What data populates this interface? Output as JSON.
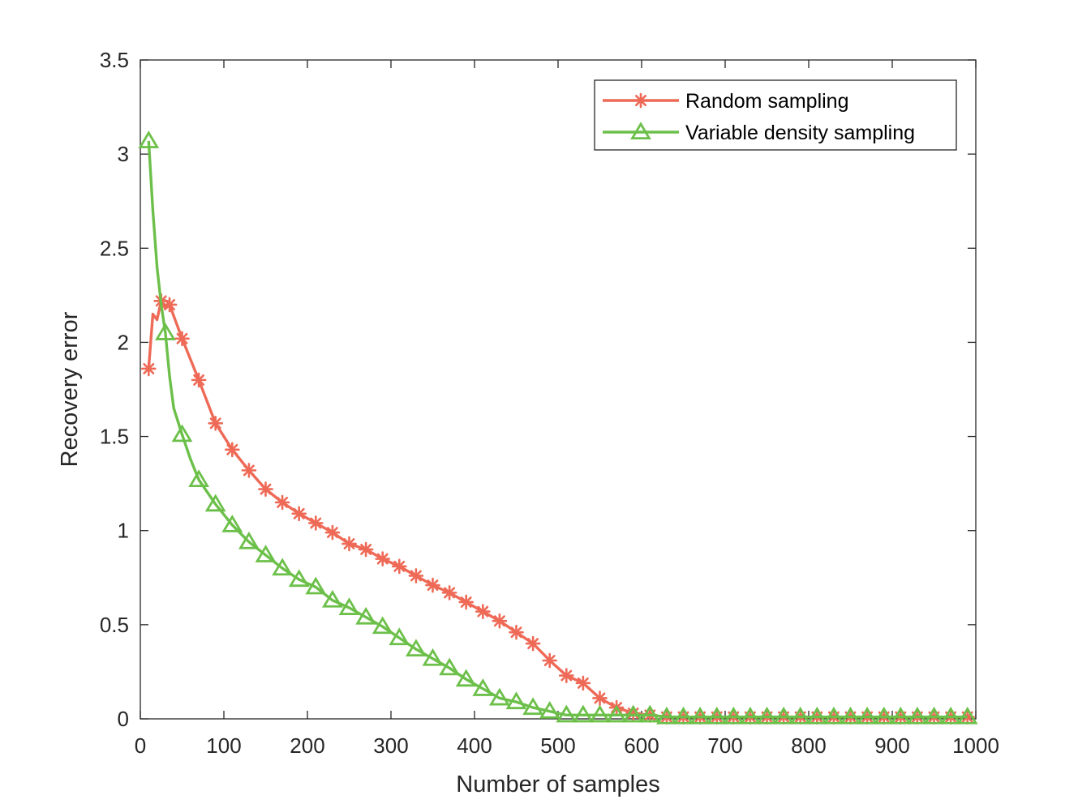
{
  "chart_data": {
    "type": "line",
    "title": "",
    "xlabel": "Number of samples",
    "ylabel": "Recovery error",
    "xlim": [
      0,
      1000
    ],
    "ylim": [
      0,
      3.5
    ],
    "x_ticks": [
      0,
      100,
      200,
      300,
      400,
      500,
      600,
      700,
      800,
      900,
      1000
    ],
    "y_ticks": [
      0,
      0.5,
      1,
      1.5,
      2,
      2.5,
      3,
      3.5
    ],
    "x_tick_labels": [
      "0",
      "100",
      "200",
      "300",
      "400",
      "500",
      "600",
      "700",
      "800",
      "900",
      "1000"
    ],
    "y_tick_labels": [
      "0",
      "0.5",
      "1",
      "1.5",
      "2",
      "2.5",
      "3",
      "3.5"
    ],
    "grid": false,
    "legend_position": "top-right",
    "series": [
      {
        "name": "Random sampling",
        "color": "#ee6a57",
        "marker": "asterisk",
        "x": [
          10,
          15,
          20,
          25,
          30,
          35,
          40,
          50,
          70,
          90,
          110,
          130,
          150,
          170,
          190,
          210,
          230,
          250,
          270,
          290,
          310,
          330,
          350,
          370,
          390,
          410,
          430,
          450,
          470,
          490,
          510,
          530,
          550,
          570,
          590,
          610,
          630,
          650,
          670,
          690,
          710,
          730,
          750,
          770,
          790,
          810,
          830,
          850,
          870,
          890,
          910,
          930,
          950,
          970,
          990
        ],
        "values": [
          1.86,
          2.15,
          2.12,
          2.22,
          2.18,
          2.2,
          2.14,
          2.02,
          1.8,
          1.57,
          1.43,
          1.32,
          1.22,
          1.15,
          1.09,
          1.04,
          0.99,
          0.93,
          0.9,
          0.85,
          0.81,
          0.76,
          0.71,
          0.67,
          0.62,
          0.57,
          0.52,
          0.46,
          0.4,
          0.31,
          0.23,
          0.19,
          0.11,
          0.06,
          0.03,
          0.02,
          0.01,
          0.01,
          0.01,
          0.01,
          0.01,
          0.01,
          0.01,
          0.01,
          0.01,
          0.01,
          0.01,
          0.01,
          0.01,
          0.01,
          0.01,
          0.01,
          0.01,
          0.01,
          0.01
        ],
        "marker_indices": [
          0,
          3,
          5,
          7,
          8,
          9,
          10,
          11,
          12,
          13,
          14,
          15,
          16,
          17,
          18,
          19,
          20,
          21,
          22,
          23,
          24,
          25,
          26,
          27,
          28,
          29,
          30,
          31,
          32,
          33,
          34,
          35,
          36,
          37,
          38,
          39,
          40,
          41,
          42,
          43,
          44,
          45,
          46,
          47,
          48,
          49,
          50,
          51,
          52,
          53,
          54
        ]
      },
      {
        "name": "Variable density sampling",
        "color": "#6cc04a",
        "marker": "triangle",
        "x": [
          10,
          15,
          20,
          25,
          30,
          35,
          40,
          50,
          60,
          70,
          90,
          110,
          130,
          150,
          170,
          190,
          210,
          230,
          250,
          270,
          290,
          310,
          330,
          350,
          370,
          390,
          410,
          430,
          450,
          470,
          490,
          510,
          530,
          550,
          570,
          590,
          610,
          630,
          650,
          670,
          690,
          710,
          730,
          750,
          770,
          790,
          810,
          830,
          850,
          870,
          890,
          910,
          930,
          950,
          970,
          990
        ],
        "values": [
          3.07,
          2.7,
          2.4,
          2.2,
          2.05,
          1.82,
          1.65,
          1.51,
          1.38,
          1.27,
          1.14,
          1.03,
          0.94,
          0.87,
          0.8,
          0.74,
          0.7,
          0.63,
          0.59,
          0.54,
          0.49,
          0.43,
          0.37,
          0.32,
          0.27,
          0.21,
          0.16,
          0.11,
          0.09,
          0.06,
          0.04,
          0.02,
          0.02,
          0.02,
          0.02,
          0.02,
          0.02,
          0.01,
          0.01,
          0.01,
          0.01,
          0.01,
          0.01,
          0.01,
          0.01,
          0.01,
          0.01,
          0.01,
          0.01,
          0.01,
          0.01,
          0.01,
          0.01,
          0.01,
          0.01,
          0.01
        ],
        "marker_indices": [
          0,
          4,
          7,
          9,
          10,
          11,
          12,
          13,
          14,
          15,
          16,
          17,
          18,
          19,
          20,
          21,
          22,
          23,
          24,
          25,
          26,
          27,
          28,
          29,
          30,
          31,
          32,
          33,
          34,
          35,
          36,
          37,
          38,
          39,
          40,
          41,
          42,
          43,
          44,
          45,
          46,
          47,
          48,
          49,
          50,
          51,
          52,
          53,
          54,
          55
        ]
      }
    ]
  }
}
